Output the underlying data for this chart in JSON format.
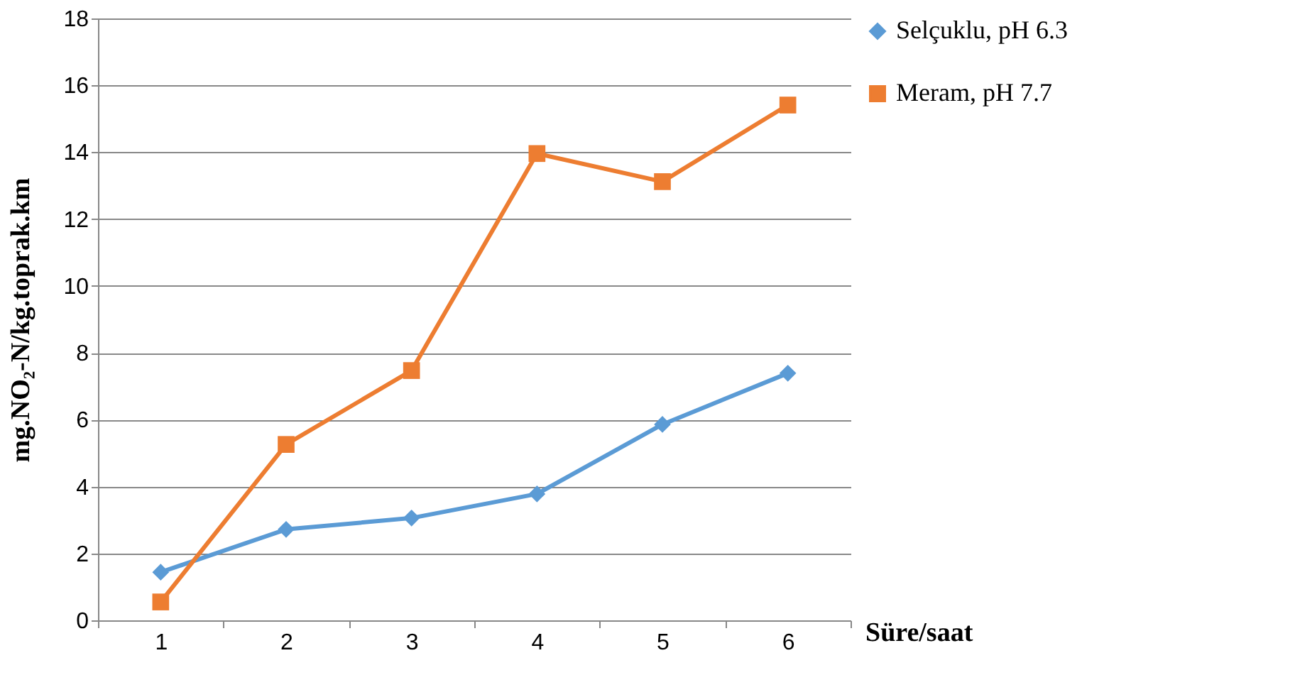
{
  "chart_data": {
    "type": "line",
    "xlabel": "Süre/saat",
    "ylabel": "mg.NO₂-N/kg.toprak.km",
    "categories": [
      "1",
      "2",
      "3",
      "4",
      "5",
      "6"
    ],
    "series": [
      {
        "name": "Selçuklu, pH 6.3",
        "color": "#5b9bd5",
        "marker": "diamond",
        "values": [
          1.44,
          2.72,
          3.06,
          3.78,
          5.86,
          7.39
        ]
      },
      {
        "name": "Meram, pH 7.7",
        "color": "#ed7d31",
        "marker": "square",
        "values": [
          0.55,
          5.26,
          7.47,
          13.96,
          13.12,
          15.41
        ]
      }
    ],
    "ylim": [
      0,
      18
    ],
    "yticks": [
      0,
      2,
      4,
      6,
      8,
      10,
      12,
      14,
      16,
      18
    ],
    "grid": "y",
    "legend": "right",
    "line_style": "solid"
  }
}
